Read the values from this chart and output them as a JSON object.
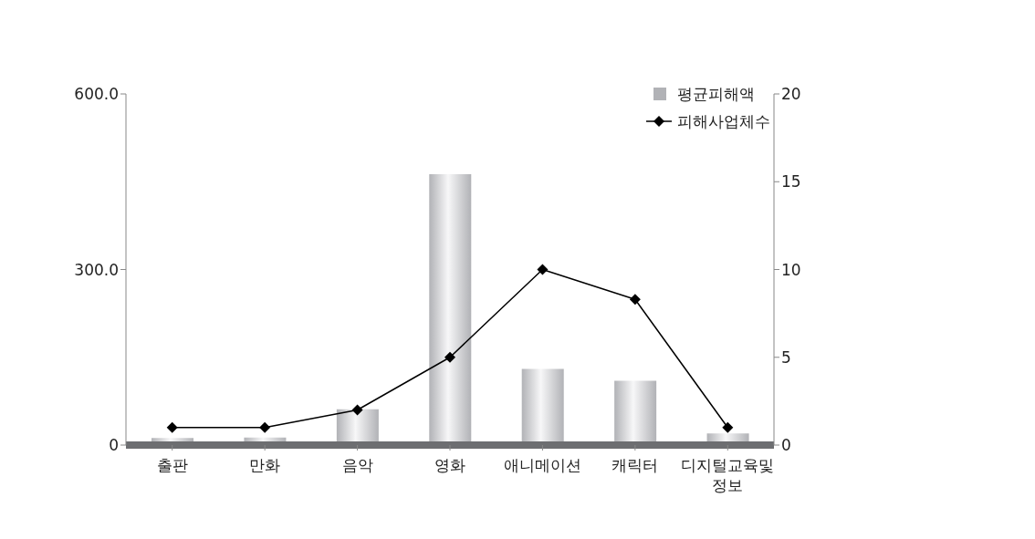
{
  "chart_data": {
    "type": "bar",
    "categories": [
      "출판",
      "만화",
      "음악",
      "영화",
      "애니메이션",
      "캐릭터",
      "디지털교육및\n정보"
    ],
    "series": [
      {
        "name": "평균피해액",
        "color": "#b1b2b6",
        "values": [
          12,
          13,
          61,
          463,
          130,
          110,
          20
        ]
      },
      {
        "name": "피해사업체수",
        "type": "line",
        "axis": "y2",
        "color": "#000000",
        "marker": "diamond",
        "values": [
          1,
          1,
          2,
          5,
          10,
          8.3,
          1
        ]
      }
    ],
    "ylim": [
      0,
      600
    ],
    "yticks": [
      0,
      {
        "value": 300,
        "label": "300.0"
      },
      {
        "value": 600,
        "label": "600.0"
      }
    ],
    "y2lim": [
      0,
      20
    ],
    "y2ticks": [
      0,
      5,
      10,
      15,
      20
    ],
    "legend": "top right"
  }
}
